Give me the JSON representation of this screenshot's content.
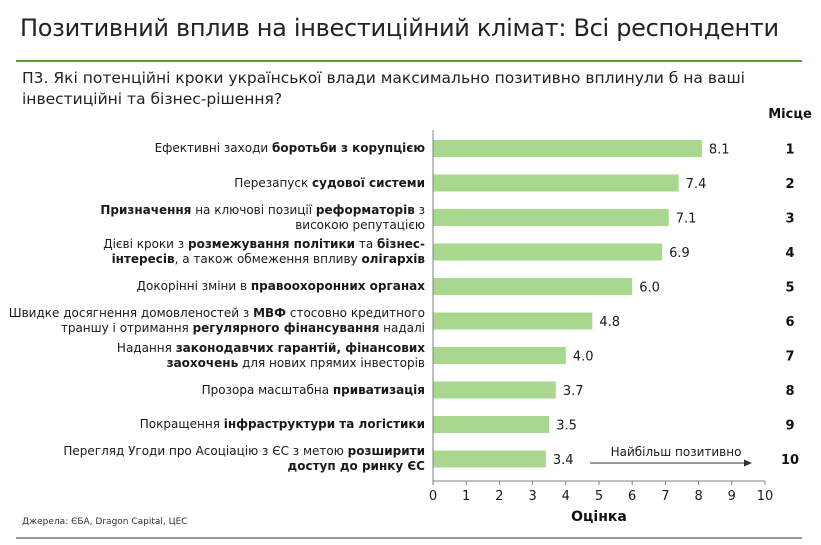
{
  "title": "Позитивний вплив на інвестиційний клімат: Всі респонденти",
  "question": "П3. Які потенційні кроки української влади максимально позитивно вплинули б на ваші інвестиційні та бізнес-рішення?",
  "source": "Джерела: ЄБА, Dragon Capital, ЦЕС",
  "colors": {
    "bar": "#a8d88e",
    "accent_rule": "#5aa02c",
    "axis": "#808080"
  },
  "chart_data": {
    "type": "bar",
    "orientation": "horizontal",
    "xlabel": "Оцінка",
    "xlim": [
      0,
      10
    ],
    "xticks": [
      0,
      1,
      2,
      3,
      4,
      5,
      6,
      7,
      8,
      9,
      10
    ],
    "rank_header": "Місце",
    "annotation": "Найбільш позитивно",
    "categories": [
      "Ефективні заходи боротьби з корупцією",
      "Перезапуск судової системи",
      "Призначення на ключові позиції реформаторів з високою репутацією",
      "Дієві кроки з розмежування політики та бізнес-інтересів, а також обмеження впливу олігархів",
      "Докорінні зміни в правоохоронних органах",
      "Швидке досягнення домовленостей з МВФ стосовно кредитного траншу і отримання регулярного фінансування надалі",
      "Надання законодавчих гарантій, фінансових заохочень для нових прямих інвесторів",
      "Прозора масштабна приватизація",
      "Покращення інфраструктури та логістики",
      "Перегляд Угоди про Асоціацію з ЄС з метою розширити доступ до ринку ЄС"
    ],
    "category_lines": [
      [
        [
          [
            "Ефективні заходи ",
            false
          ],
          [
            "боротьби з корупцією",
            true
          ]
        ]
      ],
      [
        [
          [
            "Перезапуск ",
            false
          ],
          [
            "судової системи",
            true
          ]
        ]
      ],
      [
        [
          [
            "Призначення",
            true
          ],
          [
            " на ключові позиції ",
            false
          ],
          [
            "реформаторів",
            true
          ],
          [
            " з",
            false
          ]
        ],
        [
          [
            "високою репутацією",
            false
          ]
        ]
      ],
      [
        [
          [
            "Дієві кроки з ",
            false
          ],
          [
            "розмежування політики",
            true
          ],
          [
            " та ",
            false
          ],
          [
            "бізнес-",
            true
          ]
        ],
        [
          [
            "інтересів",
            true
          ],
          [
            ", а також обмеження впливу ",
            false
          ],
          [
            "олігархів",
            true
          ]
        ]
      ],
      [
        [
          [
            "Докорінні зміни в ",
            false
          ],
          [
            "правоохоронних органах",
            true
          ]
        ]
      ],
      [
        [
          [
            "Швидке досягнення домовленостей з ",
            false
          ],
          [
            "МВФ",
            true
          ],
          [
            " стосовно кредитного",
            false
          ]
        ],
        [
          [
            "траншу і отримання ",
            false
          ],
          [
            "регулярного фінансування",
            true
          ],
          [
            " надалі",
            false
          ]
        ]
      ],
      [
        [
          [
            "Надання ",
            false
          ],
          [
            "законодавчих гарантій, фінансових",
            true
          ]
        ],
        [
          [
            "заохочень",
            true
          ],
          [
            " для нових прямих інвесторів",
            false
          ]
        ]
      ],
      [
        [
          [
            "Прозора масштабна ",
            false
          ],
          [
            "приватизація",
            true
          ]
        ]
      ],
      [
        [
          [
            "Покращення ",
            false
          ],
          [
            "інфраструктури та логістики",
            true
          ]
        ]
      ],
      [
        [
          [
            "Перегляд Угоди про Асоціацію з ЄС з метою ",
            false
          ],
          [
            "розширити",
            true
          ]
        ],
        [
          [
            "доступ до ринку ЄС",
            true
          ]
        ]
      ]
    ],
    "values": [
      8.1,
      7.4,
      7.1,
      6.9,
      6.0,
      4.8,
      4.0,
      3.7,
      3.5,
      3.4
    ],
    "value_labels": [
      "8.1",
      "7.4",
      "7.1",
      "6.9",
      "6.0",
      "4.8",
      "4.0",
      "3.7",
      "3.5",
      "3.4"
    ],
    "ranks": [
      "1",
      "2",
      "3",
      "4",
      "5",
      "6",
      "7",
      "8",
      "9",
      "10"
    ]
  }
}
